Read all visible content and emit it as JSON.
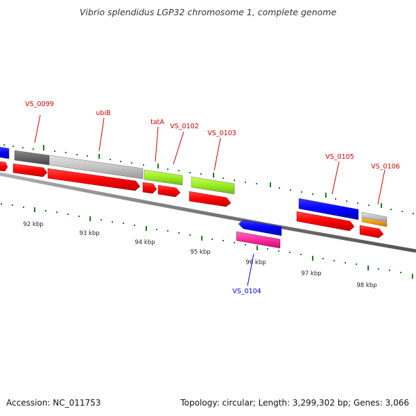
{
  "title": "Vibrio splendidus LGP32 chromosome 1, complete genome",
  "accession": "Accession: NC_011753",
  "summary": "Topology: circular; Length: 3,299,302 bp; Genes: 3,066",
  "colors": {
    "backbone": "#7a7a7a",
    "tick": "#1a7a1a",
    "cds": "#ff0000",
    "label_top": "#d00000",
    "label_bottom": "#0000cc",
    "blue": "#0000ff",
    "lime": "#99ee22",
    "pink": "#ff2a9f",
    "orange": "#ff9900",
    "gray_dark": "#666666",
    "gray_light": "#c4c4c4"
  },
  "scale_labels": [
    "92 kbp",
    "93 kbp",
    "94 kbp",
    "95 kbp",
    "96 kbp",
    "97 kbp",
    "98 kbp"
  ],
  "gene_labels": {
    "vs_0099": "VS_0099",
    "ubib": "ubiB",
    "tata": "tatA",
    "vs_0102": "VS_0102",
    "vs_0103": "VS_0103",
    "vs_0104": "VS_0104",
    "vs_0105": "VS_0105",
    "vs_0106": "VS_0106"
  }
}
